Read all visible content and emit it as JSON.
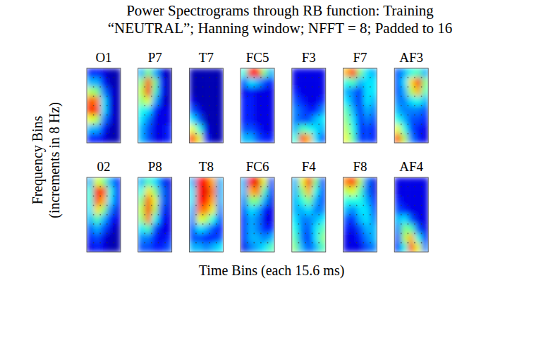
{
  "chart_data": {
    "type": "heatmap",
    "title": "Power Spectrograms through RB function: Training “NEUTRAL”; Hanning window; NFFT = 8; Padded to 16",
    "x_label": "Time Bins (each 15.6 ms)",
    "y_label": "Frequency Bins (increments in 8 Hz)",
    "tick_labels": false,
    "color": "jet",
    "value_range": [
      0,
      1
    ],
    "panels": [
      {
        "label": "O1",
        "cells": [
          [
            0.15,
            0.15,
            0.1,
            0.05,
            0.05
          ],
          [
            0.3,
            0.3,
            0.15,
            0.05,
            0.05
          ],
          [
            0.55,
            0.5,
            0.25,
            0.1,
            0.05
          ],
          [
            0.8,
            0.75,
            0.35,
            0.1,
            0.05
          ],
          [
            0.85,
            0.8,
            0.35,
            0.1,
            0.05
          ],
          [
            0.6,
            0.55,
            0.25,
            0.1,
            0.05
          ],
          [
            0.3,
            0.3,
            0.15,
            0.05,
            0.05
          ],
          [
            0.15,
            0.15,
            0.1,
            0.05,
            0.05
          ]
        ]
      },
      {
        "label": "P7",
        "cells": [
          [
            0.3,
            0.5,
            0.3,
            0.1,
            0.05
          ],
          [
            0.5,
            0.8,
            0.5,
            0.15,
            0.05
          ],
          [
            0.55,
            0.85,
            0.45,
            0.15,
            0.05
          ],
          [
            0.5,
            0.6,
            0.3,
            0.1,
            0.05
          ],
          [
            0.4,
            0.35,
            0.15,
            0.1,
            0.1
          ],
          [
            0.35,
            0.25,
            0.1,
            0.1,
            0.1
          ],
          [
            0.3,
            0.2,
            0.1,
            0.1,
            0.15
          ],
          [
            0.3,
            0.2,
            0.1,
            0.1,
            0.15
          ]
        ]
      },
      {
        "label": "T7",
        "cells": [
          [
            0.05,
            0.05,
            0.05,
            0.05,
            0.05
          ],
          [
            0.05,
            0.05,
            0.05,
            0.05,
            0.05
          ],
          [
            0.05,
            0.05,
            0.05,
            0.05,
            0.05
          ],
          [
            0.1,
            0.05,
            0.05,
            0.05,
            0.05
          ],
          [
            0.2,
            0.1,
            0.05,
            0.05,
            0.05
          ],
          [
            0.35,
            0.2,
            0.05,
            0.05,
            0.05
          ],
          [
            0.6,
            0.4,
            0.1,
            0.05,
            0.05
          ],
          [
            0.85,
            0.6,
            0.15,
            0.05,
            0.05
          ]
        ]
      },
      {
        "label": "FC5",
        "cells": [
          [
            0.4,
            0.85,
            0.85,
            0.5,
            0.3
          ],
          [
            0.2,
            0.35,
            0.3,
            0.2,
            0.15
          ],
          [
            0.1,
            0.15,
            0.1,
            0.1,
            0.1
          ],
          [
            0.15,
            0.15,
            0.1,
            0.1,
            0.1
          ],
          [
            0.15,
            0.15,
            0.1,
            0.1,
            0.1
          ],
          [
            0.15,
            0.15,
            0.1,
            0.1,
            0.1
          ],
          [
            0.2,
            0.2,
            0.15,
            0.1,
            0.1
          ],
          [
            0.3,
            0.3,
            0.2,
            0.15,
            0.15
          ]
        ]
      },
      {
        "label": "F3",
        "cells": [
          [
            0.1,
            0.1,
            0.1,
            0.1,
            0.1
          ],
          [
            0.1,
            0.1,
            0.1,
            0.1,
            0.1
          ],
          [
            0.15,
            0.1,
            0.1,
            0.1,
            0.1
          ],
          [
            0.2,
            0.15,
            0.1,
            0.1,
            0.15
          ],
          [
            0.25,
            0.2,
            0.15,
            0.15,
            0.25
          ],
          [
            0.25,
            0.2,
            0.2,
            0.3,
            0.35
          ],
          [
            0.3,
            0.45,
            0.4,
            0.35,
            0.3
          ],
          [
            0.4,
            0.8,
            0.7,
            0.35,
            0.2
          ]
        ]
      },
      {
        "label": "F7",
        "cells": [
          [
            0.7,
            0.85,
            0.5,
            0.35,
            0.3
          ],
          [
            0.4,
            0.45,
            0.3,
            0.35,
            0.35
          ],
          [
            0.3,
            0.25,
            0.15,
            0.35,
            0.35
          ],
          [
            0.35,
            0.25,
            0.15,
            0.35,
            0.3
          ],
          [
            0.45,
            0.3,
            0.15,
            0.3,
            0.25
          ],
          [
            0.5,
            0.35,
            0.15,
            0.25,
            0.2
          ],
          [
            0.55,
            0.4,
            0.15,
            0.2,
            0.15
          ],
          [
            0.6,
            0.45,
            0.15,
            0.2,
            0.15
          ]
        ]
      },
      {
        "label": "AF3",
        "cells": [
          [
            0.2,
            0.3,
            0.4,
            0.45,
            0.3
          ],
          [
            0.2,
            0.35,
            0.65,
            0.85,
            0.5
          ],
          [
            0.2,
            0.3,
            0.55,
            0.7,
            0.45
          ],
          [
            0.25,
            0.25,
            0.35,
            0.4,
            0.3
          ],
          [
            0.3,
            0.25,
            0.25,
            0.25,
            0.2
          ],
          [
            0.4,
            0.3,
            0.2,
            0.2,
            0.15
          ],
          [
            0.6,
            0.4,
            0.2,
            0.15,
            0.1
          ],
          [
            0.8,
            0.55,
            0.25,
            0.15,
            0.1
          ]
        ]
      },
      {
        "label": "02",
        "cells": [
          [
            0.3,
            0.6,
            0.5,
            0.3,
            0.15
          ],
          [
            0.4,
            0.85,
            0.8,
            0.4,
            0.15
          ],
          [
            0.4,
            0.8,
            0.7,
            0.35,
            0.15
          ],
          [
            0.35,
            0.65,
            0.5,
            0.25,
            0.1
          ],
          [
            0.3,
            0.45,
            0.3,
            0.15,
            0.1
          ],
          [
            0.2,
            0.3,
            0.2,
            0.1,
            0.05
          ],
          [
            0.15,
            0.2,
            0.1,
            0.05,
            0.05
          ],
          [
            0.1,
            0.15,
            0.1,
            0.05,
            0.05
          ]
        ]
      },
      {
        "label": "P8",
        "cells": [
          [
            0.3,
            0.45,
            0.35,
            0.2,
            0.1
          ],
          [
            0.4,
            0.65,
            0.5,
            0.25,
            0.1
          ],
          [
            0.5,
            0.8,
            0.6,
            0.25,
            0.1
          ],
          [
            0.55,
            0.85,
            0.55,
            0.2,
            0.1
          ],
          [
            0.5,
            0.75,
            0.4,
            0.15,
            0.1
          ],
          [
            0.35,
            0.45,
            0.2,
            0.1,
            0.1
          ],
          [
            0.25,
            0.25,
            0.15,
            0.1,
            0.15
          ],
          [
            0.2,
            0.2,
            0.15,
            0.15,
            0.2
          ]
        ]
      },
      {
        "label": "T8",
        "cells": [
          [
            0.3,
            0.85,
            0.85,
            0.7,
            0.3
          ],
          [
            0.35,
            0.85,
            0.9,
            0.75,
            0.3
          ],
          [
            0.35,
            0.85,
            0.85,
            0.7,
            0.3
          ],
          [
            0.3,
            0.75,
            0.75,
            0.6,
            0.25
          ],
          [
            0.25,
            0.6,
            0.55,
            0.4,
            0.2
          ],
          [
            0.2,
            0.35,
            0.3,
            0.2,
            0.15
          ],
          [
            0.2,
            0.2,
            0.15,
            0.15,
            0.2
          ],
          [
            0.3,
            0.3,
            0.25,
            0.3,
            0.35
          ]
        ]
      },
      {
        "label": "FC6",
        "cells": [
          [
            0.3,
            0.85,
            0.9,
            0.6,
            0.2
          ],
          [
            0.3,
            0.7,
            0.75,
            0.45,
            0.15
          ],
          [
            0.25,
            0.5,
            0.5,
            0.3,
            0.1
          ],
          [
            0.2,
            0.35,
            0.3,
            0.15,
            0.1
          ],
          [
            0.15,
            0.3,
            0.25,
            0.1,
            0.1
          ],
          [
            0.15,
            0.3,
            0.25,
            0.15,
            0.15
          ],
          [
            0.15,
            0.3,
            0.3,
            0.25,
            0.3
          ],
          [
            0.1,
            0.25,
            0.3,
            0.35,
            0.45
          ]
        ]
      },
      {
        "label": "F4",
        "cells": [
          [
            0.3,
            0.6,
            0.85,
            0.5,
            0.2
          ],
          [
            0.3,
            0.5,
            0.7,
            0.4,
            0.2
          ],
          [
            0.3,
            0.4,
            0.5,
            0.3,
            0.2
          ],
          [
            0.3,
            0.3,
            0.35,
            0.25,
            0.25
          ],
          [
            0.35,
            0.25,
            0.25,
            0.3,
            0.35
          ],
          [
            0.4,
            0.25,
            0.2,
            0.35,
            0.45
          ],
          [
            0.45,
            0.25,
            0.15,
            0.35,
            0.5
          ],
          [
            0.5,
            0.3,
            0.2,
            0.3,
            0.45
          ]
        ]
      },
      {
        "label": "F8",
        "cells": [
          [
            0.75,
            0.85,
            0.55,
            0.25,
            0.1
          ],
          [
            0.55,
            0.6,
            0.45,
            0.25,
            0.1
          ],
          [
            0.4,
            0.4,
            0.4,
            0.3,
            0.15
          ],
          [
            0.3,
            0.25,
            0.35,
            0.35,
            0.2
          ],
          [
            0.2,
            0.15,
            0.3,
            0.35,
            0.25
          ],
          [
            0.15,
            0.1,
            0.2,
            0.3,
            0.3
          ],
          [
            0.1,
            0.1,
            0.15,
            0.25,
            0.3
          ],
          [
            0.1,
            0.1,
            0.1,
            0.2,
            0.25
          ]
        ]
      },
      {
        "label": "AF4",
        "cells": [
          [
            0.1,
            0.1,
            0.1,
            0.1,
            0.1
          ],
          [
            0.1,
            0.1,
            0.1,
            0.1,
            0.1
          ],
          [
            0.15,
            0.1,
            0.1,
            0.1,
            0.1
          ],
          [
            0.2,
            0.15,
            0.1,
            0.1,
            0.1
          ],
          [
            0.3,
            0.35,
            0.2,
            0.1,
            0.1
          ],
          [
            0.25,
            0.5,
            0.45,
            0.2,
            0.1
          ],
          [
            0.2,
            0.55,
            0.7,
            0.4,
            0.15
          ],
          [
            0.15,
            0.4,
            0.8,
            0.6,
            0.25
          ]
        ]
      }
    ]
  }
}
